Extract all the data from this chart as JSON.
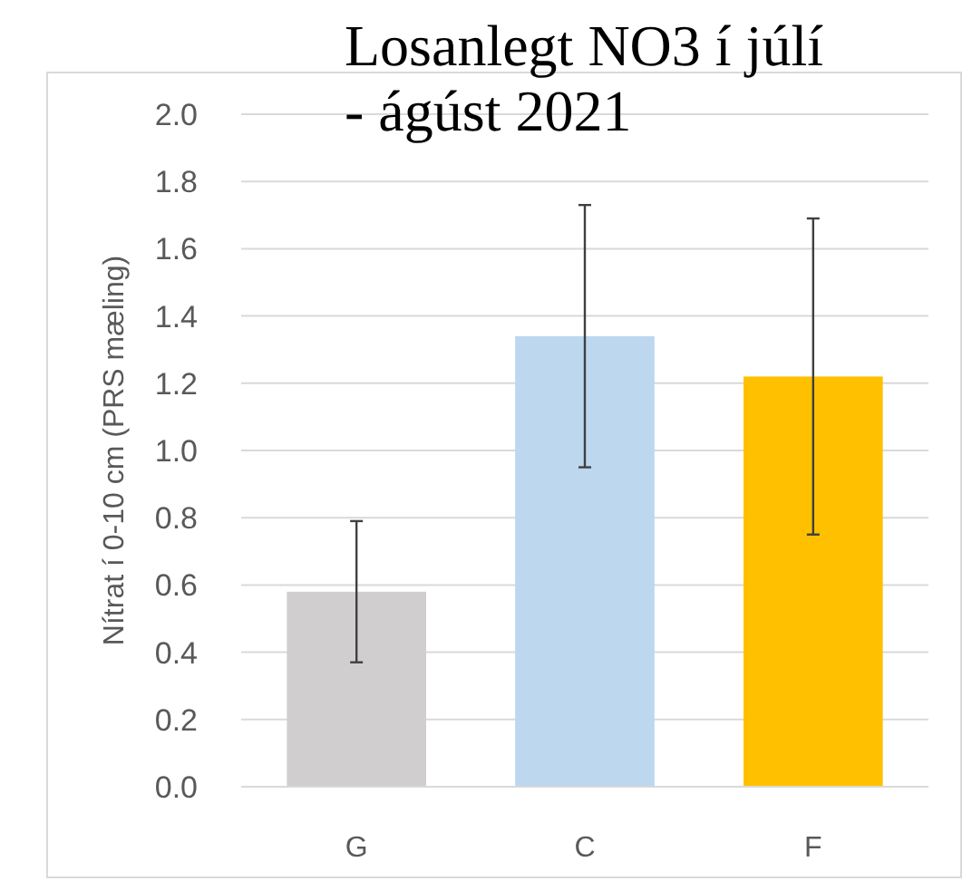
{
  "chart_data": {
    "type": "bar",
    "title": "Losanlegt NO3 í júlí - ágúst 2021",
    "ylabel": "Nítrat í 0-10 cm (PRS mæling)",
    "categories": [
      "G",
      "C",
      "F"
    ],
    "values": [
      0.58,
      1.34,
      1.22
    ],
    "colors": [
      "#d0cecf",
      "#bdd7ee",
      "#ffc000"
    ],
    "errors": [
      0.21,
      0.39,
      0.47
    ],
    "ylim": [
      0,
      2
    ],
    "yticks": [
      {
        "value": 0,
        "label": "0.0"
      },
      {
        "value": 0.2,
        "label": "0.2"
      },
      {
        "value": 0.4,
        "label": "0.4"
      },
      {
        "value": 0.6,
        "label": "0.6"
      },
      {
        "value": 0.8,
        "label": "0.8"
      },
      {
        "value": 1,
        "label": "1.0"
      },
      {
        "value": 1.2,
        "label": "1.2"
      },
      {
        "value": 1.4,
        "label": "1.4"
      },
      {
        "value": 1.6,
        "label": "1.6"
      },
      {
        "value": 1.8,
        "label": "1.8"
      },
      {
        "value": 2,
        "label": "2.0"
      }
    ],
    "grid": "y"
  }
}
